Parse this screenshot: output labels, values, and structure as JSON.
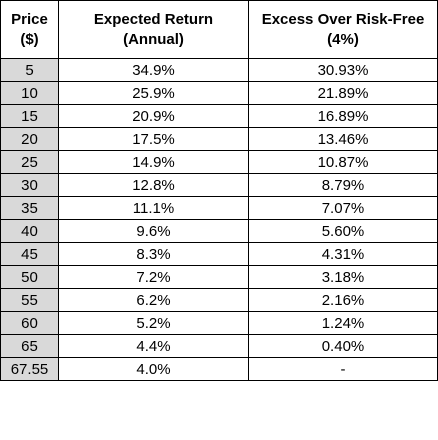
{
  "header": {
    "price": [
      "Price",
      "($)"
    ],
    "expected": [
      "Expected Return",
      "(Annual)"
    ],
    "excess": [
      "Excess Over Risk-Free",
      "(4%)"
    ]
  },
  "rows": [
    {
      "price": "5",
      "expected": "34.9%",
      "excess": "30.93%"
    },
    {
      "price": "10",
      "expected": "25.9%",
      "excess": "21.89%"
    },
    {
      "price": "15",
      "expected": "20.9%",
      "excess": "16.89%"
    },
    {
      "price": "20",
      "expected": "17.5%",
      "excess": "13.46%"
    },
    {
      "price": "25",
      "expected": "14.9%",
      "excess": "10.87%"
    },
    {
      "price": "30",
      "expected": "12.8%",
      "excess": "8.79%"
    },
    {
      "price": "35",
      "expected": "11.1%",
      "excess": "7.07%"
    },
    {
      "price": "40",
      "expected": "9.6%",
      "excess": "5.60%"
    },
    {
      "price": "45",
      "expected": "8.3%",
      "excess": "4.31%"
    },
    {
      "price": "50",
      "expected": "7.2%",
      "excess": "3.18%"
    },
    {
      "price": "55",
      "expected": "6.2%",
      "excess": "2.16%"
    },
    {
      "price": "60",
      "expected": "5.2%",
      "excess": "1.24%"
    },
    {
      "price": "65",
      "expected": "4.4%",
      "excess": "0.40%"
    },
    {
      "price": "67.55",
      "expected": "4.0%",
      "excess": "-"
    }
  ],
  "colors": {
    "price_column_fill": "#d9d9d9",
    "border": "#000000"
  }
}
